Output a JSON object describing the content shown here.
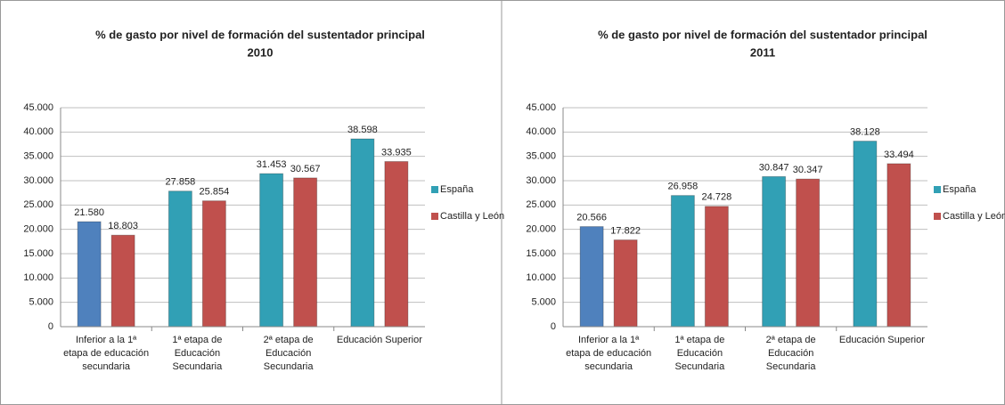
{
  "chart_data": [
    {
      "type": "bar",
      "title": "% de gasto por nivel de formación del sustentador principal",
      "subtitle": "2010",
      "categories": [
        "Inferior a la 1ª etapa de educación secundaria",
        "1ª etapa de Educación Secundaria",
        "2ª etapa de Educación Secundaria",
        "Educación Superior"
      ],
      "series": [
        {
          "name": "España",
          "color": "#31a0b5",
          "colors": [
            "#4f81bd",
            "#31a0b5",
            "#31a0b5",
            "#31a0b5"
          ],
          "values": [
            21.58,
            27.858,
            31.453,
            38.598
          ],
          "value_labels": [
            "21.580",
            "27.858",
            "31.453",
            "38.598"
          ]
        },
        {
          "name": "Castilla y León",
          "color": "#c0504d",
          "values": [
            18.803,
            25.854,
            30.567,
            33.935
          ],
          "value_labels": [
            "18.803",
            "25.854",
            "30.567",
            "33.935"
          ]
        }
      ],
      "ylim": [
        0,
        45
      ],
      "yticks": [
        0,
        {
          "value": 5,
          "label": "5.000"
        },
        {
          "value": 10,
          "label": "10.000"
        },
        {
          "value": 15,
          "label": "15.000"
        },
        {
          "value": 20,
          "label": "20.000"
        },
        {
          "value": 25,
          "label": "25.000"
        },
        {
          "value": 30,
          "label": "30.000"
        },
        {
          "value": 35,
          "label": "35.000"
        },
        {
          "value": 40,
          "label": "40.000"
        },
        {
          "value": 45,
          "label": "45.000"
        }
      ],
      "grid": true,
      "legend": "right"
    },
    {
      "type": "bar",
      "title": "% de gasto por nivel de formación del sustentador principal",
      "subtitle": "2011",
      "categories": [
        "Inferior a la 1ª etapa de educación secundaria",
        "1ª etapa de Educación Secundaria",
        "2ª etapa de Educación Secundaria",
        "Educación Superior"
      ],
      "series": [
        {
          "name": "España",
          "color": "#31a0b5",
          "colors": [
            "#4f81bd",
            "#31a0b5",
            "#31a0b5",
            "#31a0b5"
          ],
          "values": [
            20.566,
            26.958,
            30.847,
            38.128
          ],
          "value_labels": [
            "20.566",
            "26.958",
            "30.847",
            "38.128"
          ]
        },
        {
          "name": "Castilla y León",
          "color": "#c0504d",
          "values": [
            17.822,
            24.728,
            30.347,
            33.494
          ],
          "value_labels": [
            "17.822",
            "24.728",
            "30.347",
            "33.494"
          ]
        }
      ],
      "ylim": [
        0,
        45
      ],
      "yticks": [
        0,
        {
          "value": 5,
          "label": "5.000"
        },
        {
          "value": 10,
          "label": "10.000"
        },
        {
          "value": 15,
          "label": "15.000"
        },
        {
          "value": 20,
          "label": "20.000"
        },
        {
          "value": 25,
          "label": "25.000"
        },
        {
          "value": 30,
          "label": "30.000"
        },
        {
          "value": 35,
          "label": "35.000"
        },
        {
          "value": 40,
          "label": "40.000"
        },
        {
          "value": 45,
          "label": "45.000"
        }
      ],
      "grid": true,
      "legend": "right"
    }
  ]
}
